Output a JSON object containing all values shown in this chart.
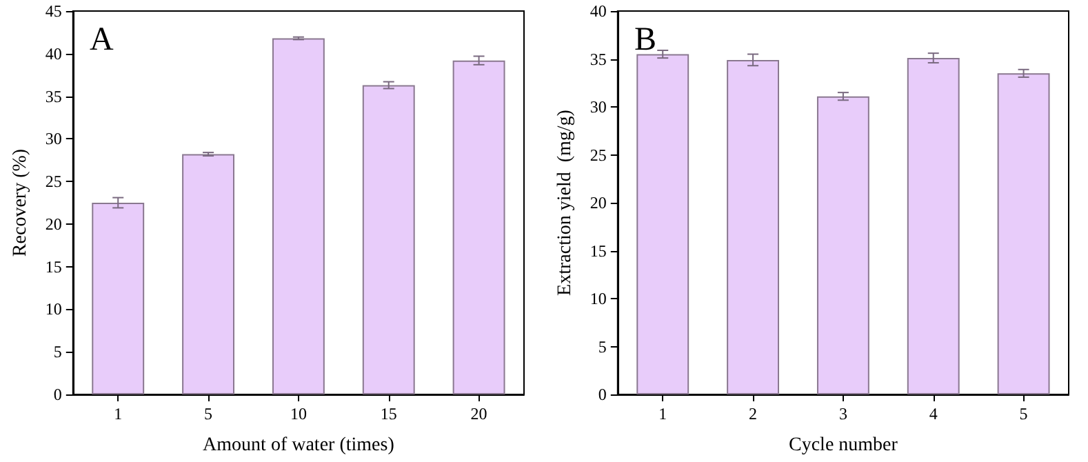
{
  "chart_data": [
    {
      "type": "bar",
      "title": "A",
      "xlabel": "Amount of water (times)",
      "ylabel": "Recovery (%)",
      "categories": [
        "1",
        "5",
        "10",
        "15",
        "20"
      ],
      "series": [
        {
          "color": "#e8ccfa",
          "values": [
            22.5,
            28.2,
            41.8,
            36.3,
            39.2
          ],
          "errors": [
            0.6,
            0.2,
            0.15,
            0.4,
            0.5
          ]
        }
      ],
      "ylim": [
        0,
        45
      ],
      "yticks": [
        0,
        5,
        10,
        15,
        20,
        25,
        30,
        35,
        40,
        45
      ],
      "grid": false
    },
    {
      "type": "bar",
      "title": "B",
      "xlabel": "Cycle number",
      "ylabel": "Extraction yield  (mg/g)",
      "categories": [
        "1",
        "2",
        "3",
        "4",
        "5"
      ],
      "series": [
        {
          "color": "#e8ccfa",
          "values": [
            35.5,
            34.9,
            31.1,
            35.1,
            33.5
          ],
          "errors": [
            0.4,
            0.6,
            0.4,
            0.5,
            0.4
          ]
        }
      ],
      "ylim": [
        0,
        40
      ],
      "yticks": [
        0,
        5,
        10,
        15,
        20,
        25,
        30,
        35,
        40
      ],
      "grid": false
    }
  ]
}
